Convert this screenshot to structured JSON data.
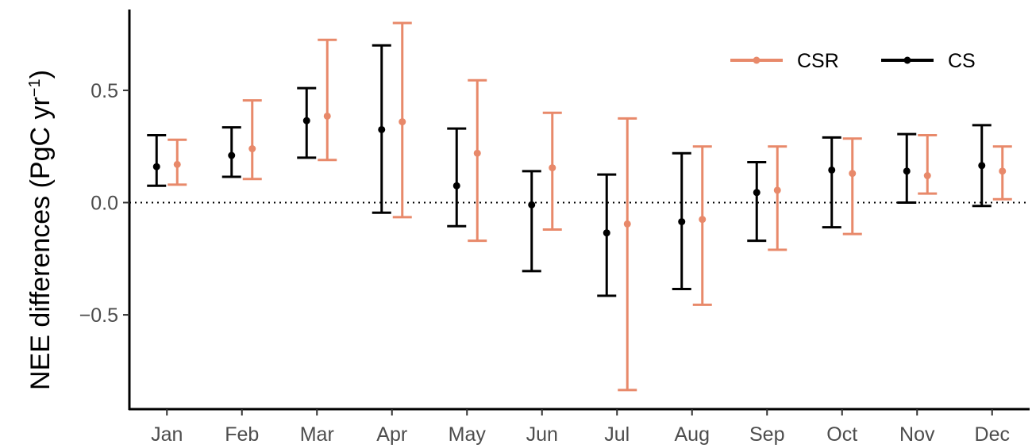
{
  "chart_data": {
    "type": "errorbar",
    "categories": [
      "Jan",
      "Feb",
      "Mar",
      "Apr",
      "May",
      "Jun",
      "Jul",
      "Aug",
      "Sep",
      "Oct",
      "Nov",
      "Dec"
    ],
    "ylabel_prefix": "NEE differences (PgC yr",
    "ylabel_sup": "−1",
    "ylabel_suffix": ")",
    "xlabel": "",
    "ylim": [
      -0.92,
      0.86
    ],
    "yticks": [
      0.5,
      0.0,
      -0.5
    ],
    "ytick_labels": [
      "0.5",
      "0.0",
      "−0.5"
    ],
    "reference_line": {
      "y": 0,
      "style": "dotted"
    },
    "grid": false,
    "legend_position": "top-right",
    "series": [
      {
        "name": "CSR",
        "color": "#E8896A",
        "mean": [
          0.17,
          0.24,
          0.385,
          0.36,
          0.22,
          0.155,
          -0.095,
          -0.075,
          0.055,
          0.13,
          0.12,
          0.14
        ],
        "lower": [
          0.08,
          0.105,
          0.19,
          -0.065,
          -0.17,
          -0.12,
          -0.835,
          -0.455,
          -0.21,
          -0.14,
          0.04,
          0.015
        ],
        "upper": [
          0.28,
          0.455,
          0.725,
          0.8,
          0.545,
          0.4,
          0.375,
          0.25,
          0.25,
          0.285,
          0.3,
          0.25
        ]
      },
      {
        "name": "CS",
        "color": "#000000",
        "mean": [
          0.16,
          0.21,
          0.365,
          0.325,
          0.075,
          -0.01,
          -0.135,
          -0.085,
          0.045,
          0.145,
          0.14,
          0.165
        ],
        "lower": [
          0.075,
          0.115,
          0.2,
          -0.045,
          -0.105,
          -0.305,
          -0.415,
          -0.385,
          -0.17,
          -0.11,
          0.0,
          -0.015
        ],
        "upper": [
          0.3,
          0.335,
          0.51,
          0.7,
          0.33,
          0.14,
          0.125,
          0.22,
          0.18,
          0.29,
          0.305,
          0.345
        ]
      }
    ],
    "legend_order": [
      "CSR",
      "CS"
    ]
  }
}
